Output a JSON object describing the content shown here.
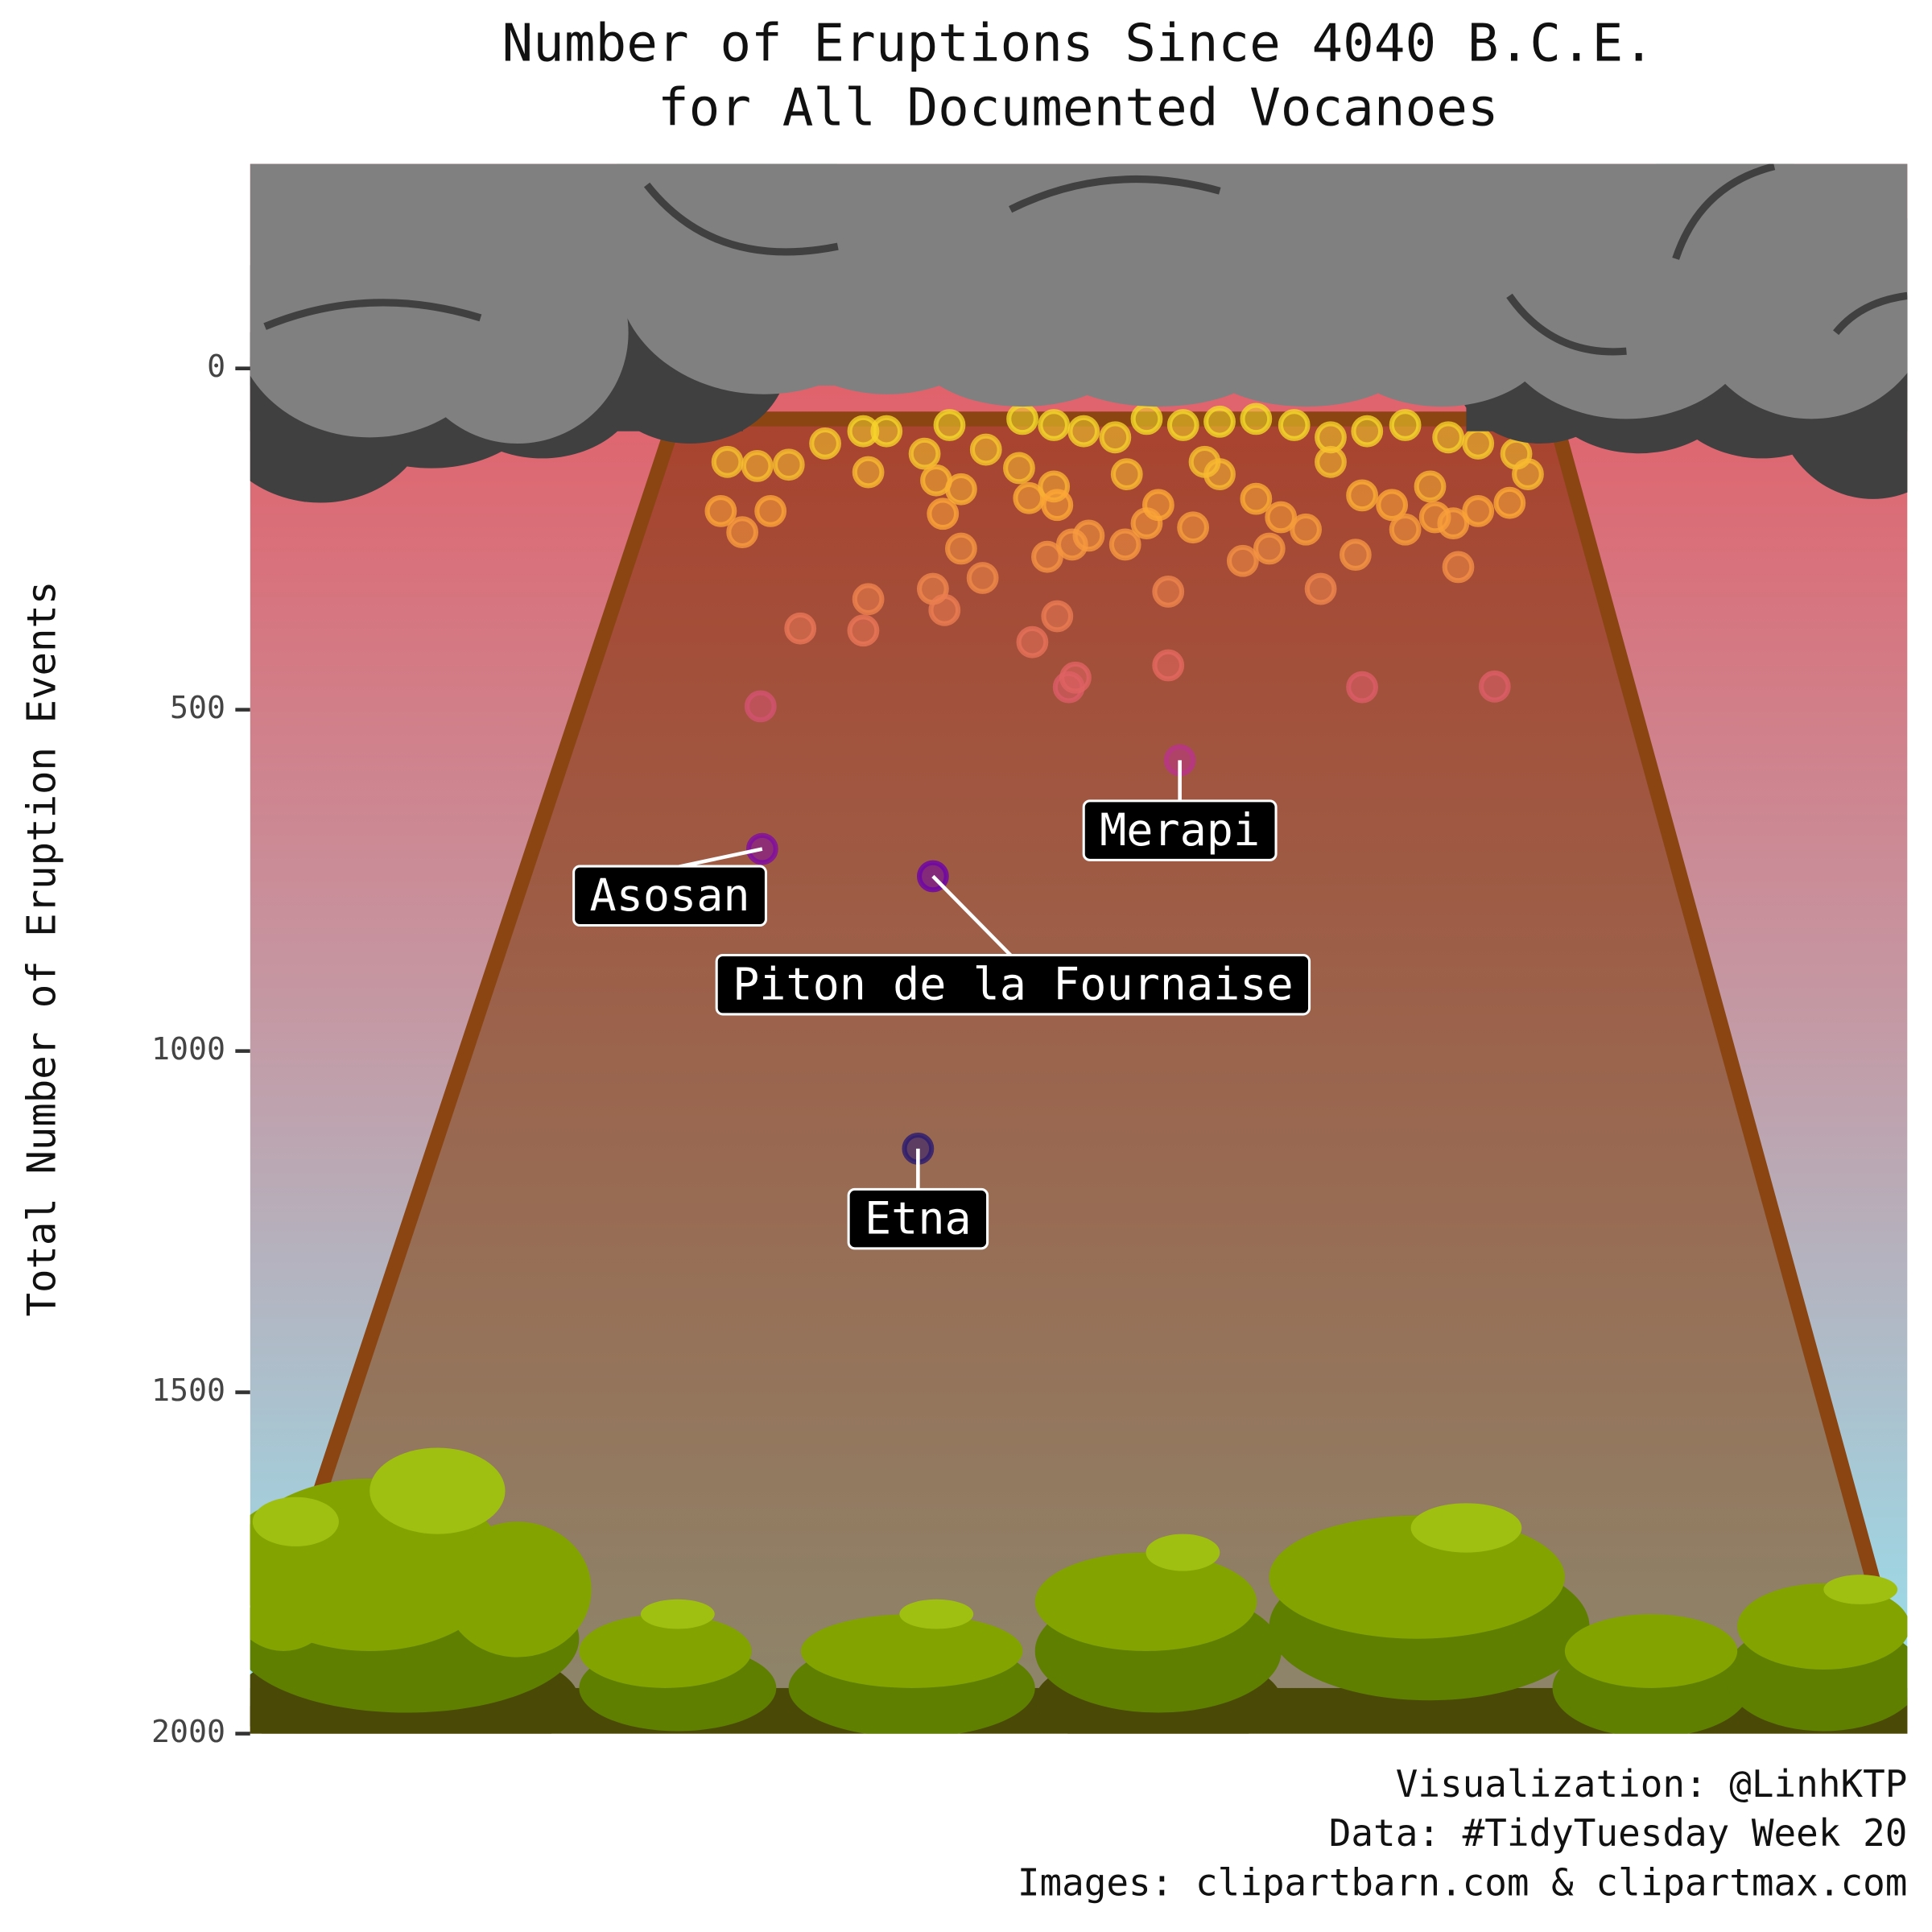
{
  "chart_data": {
    "type": "scatter",
    "title": [
      "Number of Eruptions Since 4040 B.C.E.",
      "for All Documented Vocanoes"
    ],
    "y_label": "Total Number of Eruption Events",
    "caption": [
      "Visualization: @LinhKTP",
      "Data: #TidyTuesday Week 20",
      "Images: clipartbarn.com & clipartmax.com"
    ],
    "ylim": [
      0,
      2000
    ],
    "yticks": [
      0,
      500,
      1000,
      1500,
      2000
    ],
    "y_reversed": true,
    "xlim": [
      0,
      1
    ],
    "color_scale": {
      "values": [
        0,
        200,
        450,
        600,
        750,
        1150
      ],
      "colors": [
        "#f0f921",
        "#fca636",
        "#e16462",
        "#b12a90",
        "#6a00a8",
        "#2a1a70"
      ]
    },
    "x": [
      0.288,
      0.306,
      0.325,
      0.347,
      0.37,
      0.384,
      0.407,
      0.422,
      0.444,
      0.466,
      0.485,
      0.503,
      0.522,
      0.541,
      0.563,
      0.585,
      0.607,
      0.63,
      0.652,
      0.674,
      0.697,
      0.723,
      0.741,
      0.764,
      0.771,
      0.284,
      0.297,
      0.314,
      0.332,
      0.373,
      0.373,
      0.414,
      0.418,
      0.429,
      0.429,
      0.442,
      0.464,
      0.47,
      0.485,
      0.487,
      0.481,
      0.496,
      0.506,
      0.528,
      0.529,
      0.541,
      0.548,
      0.554,
      0.569,
      0.576,
      0.585,
      0.599,
      0.607,
      0.615,
      0.622,
      0.637,
      0.646,
      0.652,
      0.667,
      0.671,
      0.689,
      0.697,
      0.712,
      0.715,
      0.726,
      0.729,
      0.741,
      0.76,
      0.412,
      0.419,
      0.487,
      0.308,
      0.37,
      0.472,
      0.494,
      0.498,
      0.554,
      0.671,
      0.751,
      0.561,
      0.309,
      0.412,
      0.403
    ],
    "values": [
      137,
      143,
      141,
      110,
      92,
      92,
      125,
      83,
      119,
      74,
      83,
      92,
      101,
      74,
      83,
      78,
      74,
      83,
      101,
      92,
      83,
      101,
      110,
      125,
      155,
      209,
      240,
      209,
      381,
      338,
      152,
      164,
      213,
      177,
      264,
      307,
      146,
      190,
      173,
      200,
      276,
      258,
      245,
      258,
      155,
      227,
      200,
      327,
      233,
      137,
      155,
      282,
      191,
      264,
      218,
      236,
      323,
      137,
      273,
      186,
      200,
      236,
      173,
      218,
      227,
      291,
      209,
      197,
      323,
      354,
      363,
      495,
      384,
      401,
      467,
      453,
      435,
      467,
      466,
      574,
      704,
      744,
      1143
    ],
    "labels": [
      null,
      null,
      null,
      null,
      null,
      null,
      null,
      null,
      null,
      null,
      null,
      null,
      null,
      null,
      null,
      null,
      null,
      null,
      null,
      null,
      null,
      null,
      null,
      null,
      null,
      null,
      null,
      null,
      null,
      null,
      null,
      null,
      null,
      null,
      null,
      null,
      null,
      null,
      null,
      null,
      null,
      null,
      null,
      null,
      null,
      null,
      null,
      null,
      null,
      null,
      null,
      null,
      null,
      null,
      null,
      null,
      null,
      null,
      null,
      null,
      null,
      null,
      null,
      null,
      null,
      null,
      null,
      null,
      null,
      null,
      null,
      null,
      null,
      null,
      null,
      null,
      null,
      null,
      null,
      "Merapi",
      "Asosan",
      "Piton de la Fournaise",
      "Etna"
    ]
  }
}
